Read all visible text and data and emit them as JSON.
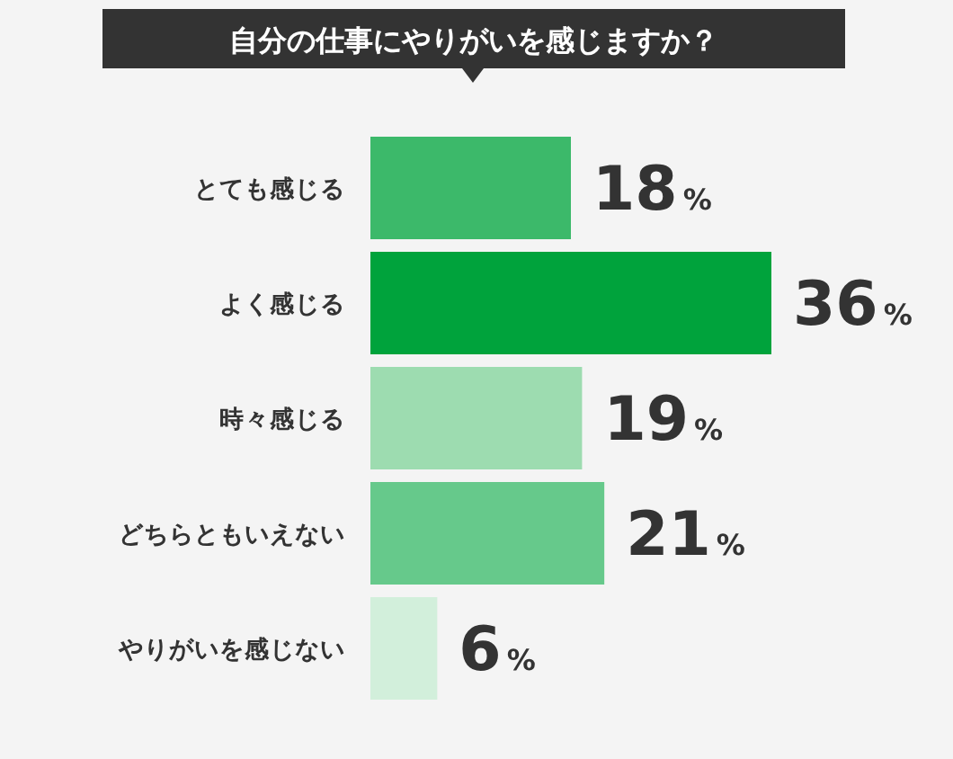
{
  "chart_data": {
    "type": "bar",
    "orientation": "horizontal",
    "title": "自分の仕事にやりがいを感じますか？",
    "categories": [
      "とても感じる",
      "よく感じる",
      "時々感じる",
      "どちらともいえない",
      "やりがいを感じない"
    ],
    "values": [
      18,
      36,
      19,
      21,
      6
    ],
    "colors": [
      "#3cb96a",
      "#00a33c",
      "#9ddcb0",
      "#66c98b",
      "#d2efdb"
    ],
    "value_labels": [
      "18%",
      "36%",
      "19%",
      "21%",
      "6%"
    ],
    "legend": false,
    "grid": false
  }
}
